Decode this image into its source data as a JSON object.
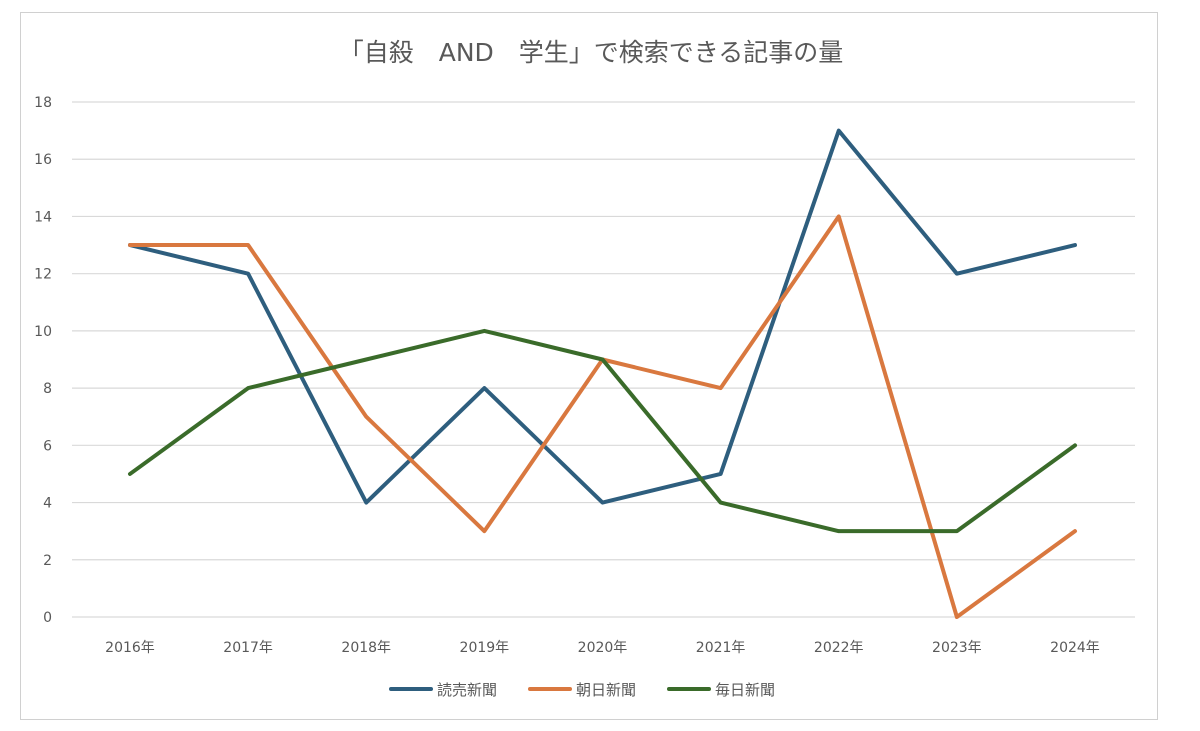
{
  "chart_data": {
    "type": "line",
    "title": "「自殺　AND　学生」で検索できる記事の量",
    "xlabel": "",
    "ylabel": "",
    "categories": [
      "2016年",
      "2017年",
      "2018年",
      "2019年",
      "2020年",
      "2021年",
      "2022年",
      "2023年",
      "2024年"
    ],
    "ylim": [
      0,
      18
    ],
    "yticks": [
      0,
      2,
      4,
      6,
      8,
      10,
      12,
      14,
      16,
      18
    ],
    "grid": true,
    "legend_position": "bottom",
    "series": [
      {
        "name": "読売新聞",
        "color": "#2e5e7e",
        "values": [
          13,
          12,
          4,
          8,
          4,
          5,
          17,
          12,
          13
        ]
      },
      {
        "name": "朝日新聞",
        "color": "#d9783f",
        "values": [
          13,
          13,
          7,
          3,
          9,
          8,
          14,
          0,
          3
        ]
      },
      {
        "name": "毎日新聞",
        "color": "#3a6b2a",
        "values": [
          5,
          8,
          9,
          10,
          9,
          4,
          3,
          3,
          6
        ]
      }
    ]
  }
}
